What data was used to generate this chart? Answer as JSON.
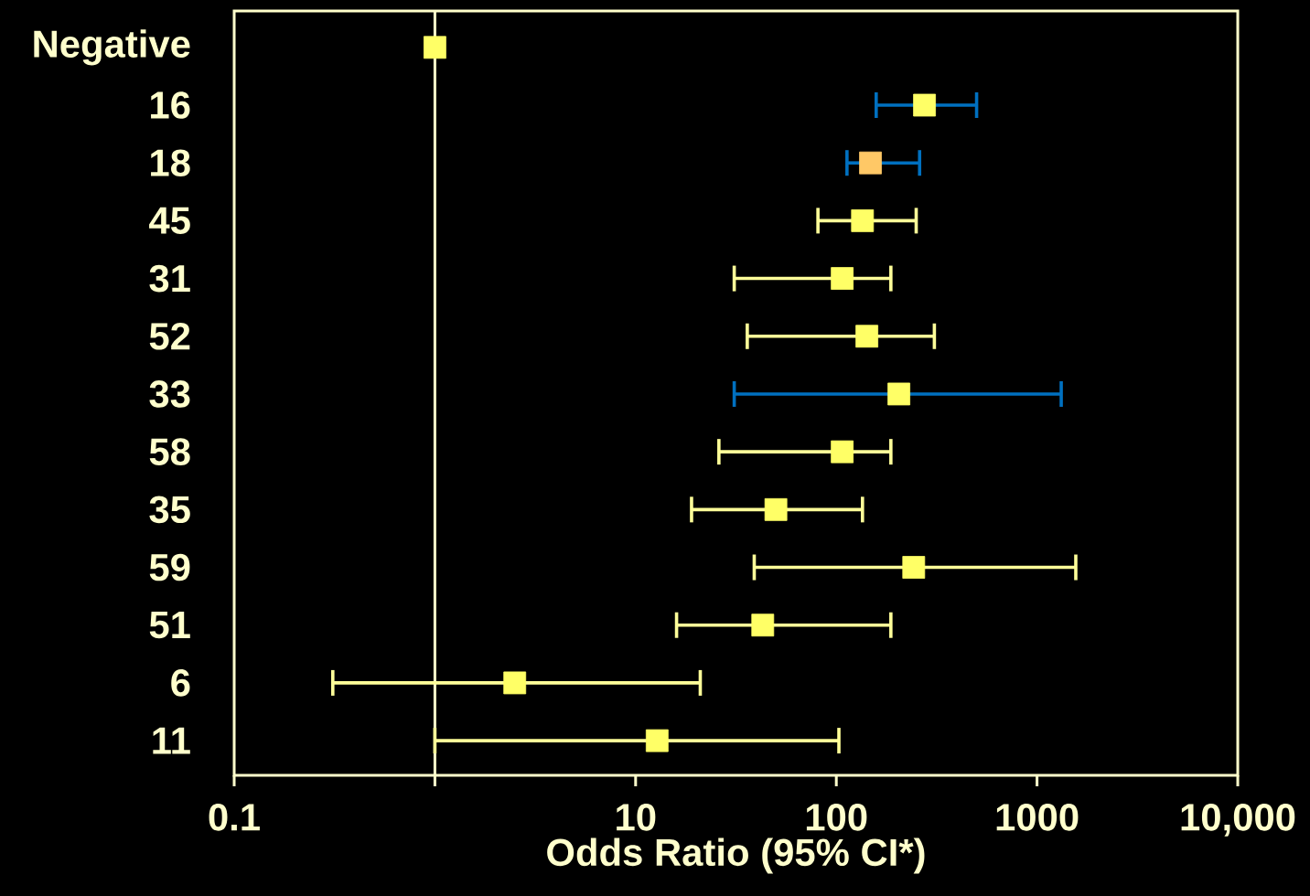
{
  "chart_data": {
    "type": "scatter",
    "orientation": "horizontal",
    "log": "x",
    "marker": "square",
    "xlabel": "Odds Ratio (95% CI*)",
    "categories": [
      "Negative",
      "16",
      "18",
      "45",
      "31",
      "52",
      "33",
      "58",
      "35",
      "59",
      "51",
      "6",
      "11"
    ],
    "series": [
      {
        "color": "#ffff99",
        "values": [
          1,
          null,
          null,
          135,
          107,
          142,
          null,
          107,
          50,
          243,
          43,
          2.5,
          12.8
        ],
        "colors": [
          "#ffff66",
          null,
          null,
          "#ffff66",
          "#ffff66",
          "#ffff66",
          null,
          "#ffff66",
          "#ffff66",
          "#ffff66",
          "#ffff66",
          "#ffff66",
          "#ffff66"
        ],
        "errors": [
          null,
          null,
          null,
          [
            81,
            250
          ],
          [
            31,
            187
          ],
          [
            36,
            308
          ],
          null,
          [
            26,
            187
          ],
          [
            19,
            135
          ],
          [
            39,
            1560
          ],
          [
            16,
            187
          ],
          [
            0.31,
            21
          ],
          [
            1.0,
            103
          ]
        ]
      },
      {
        "color": "#0070c0",
        "values": [
          null,
          275,
          148,
          null,
          null,
          null,
          205,
          null,
          null,
          null,
          null,
          null,
          null
        ],
        "colors": [
          null,
          "#ffff66",
          "#ffc866",
          null,
          null,
          null,
          "#ffff66",
          null,
          null,
          null,
          null,
          null,
          null
        ],
        "errors": [
          null,
          [
            158,
            500
          ],
          [
            113,
            260
          ],
          null,
          null,
          null,
          [
            31,
            1320
          ],
          null,
          null,
          null,
          null,
          null,
          null
        ]
      }
    ],
    "xlim": [
      0.1,
      10000
    ],
    "xticks": [
      0.1,
      {
        "value": 1,
        "label": null
      },
      10,
      100,
      1000,
      {
        "value": 10000,
        "label": "10,000"
      }
    ],
    "ref_lines": [
      {
        "axis": "x",
        "value": 1,
        "color": "#ffffcc"
      }
    ]
  }
}
